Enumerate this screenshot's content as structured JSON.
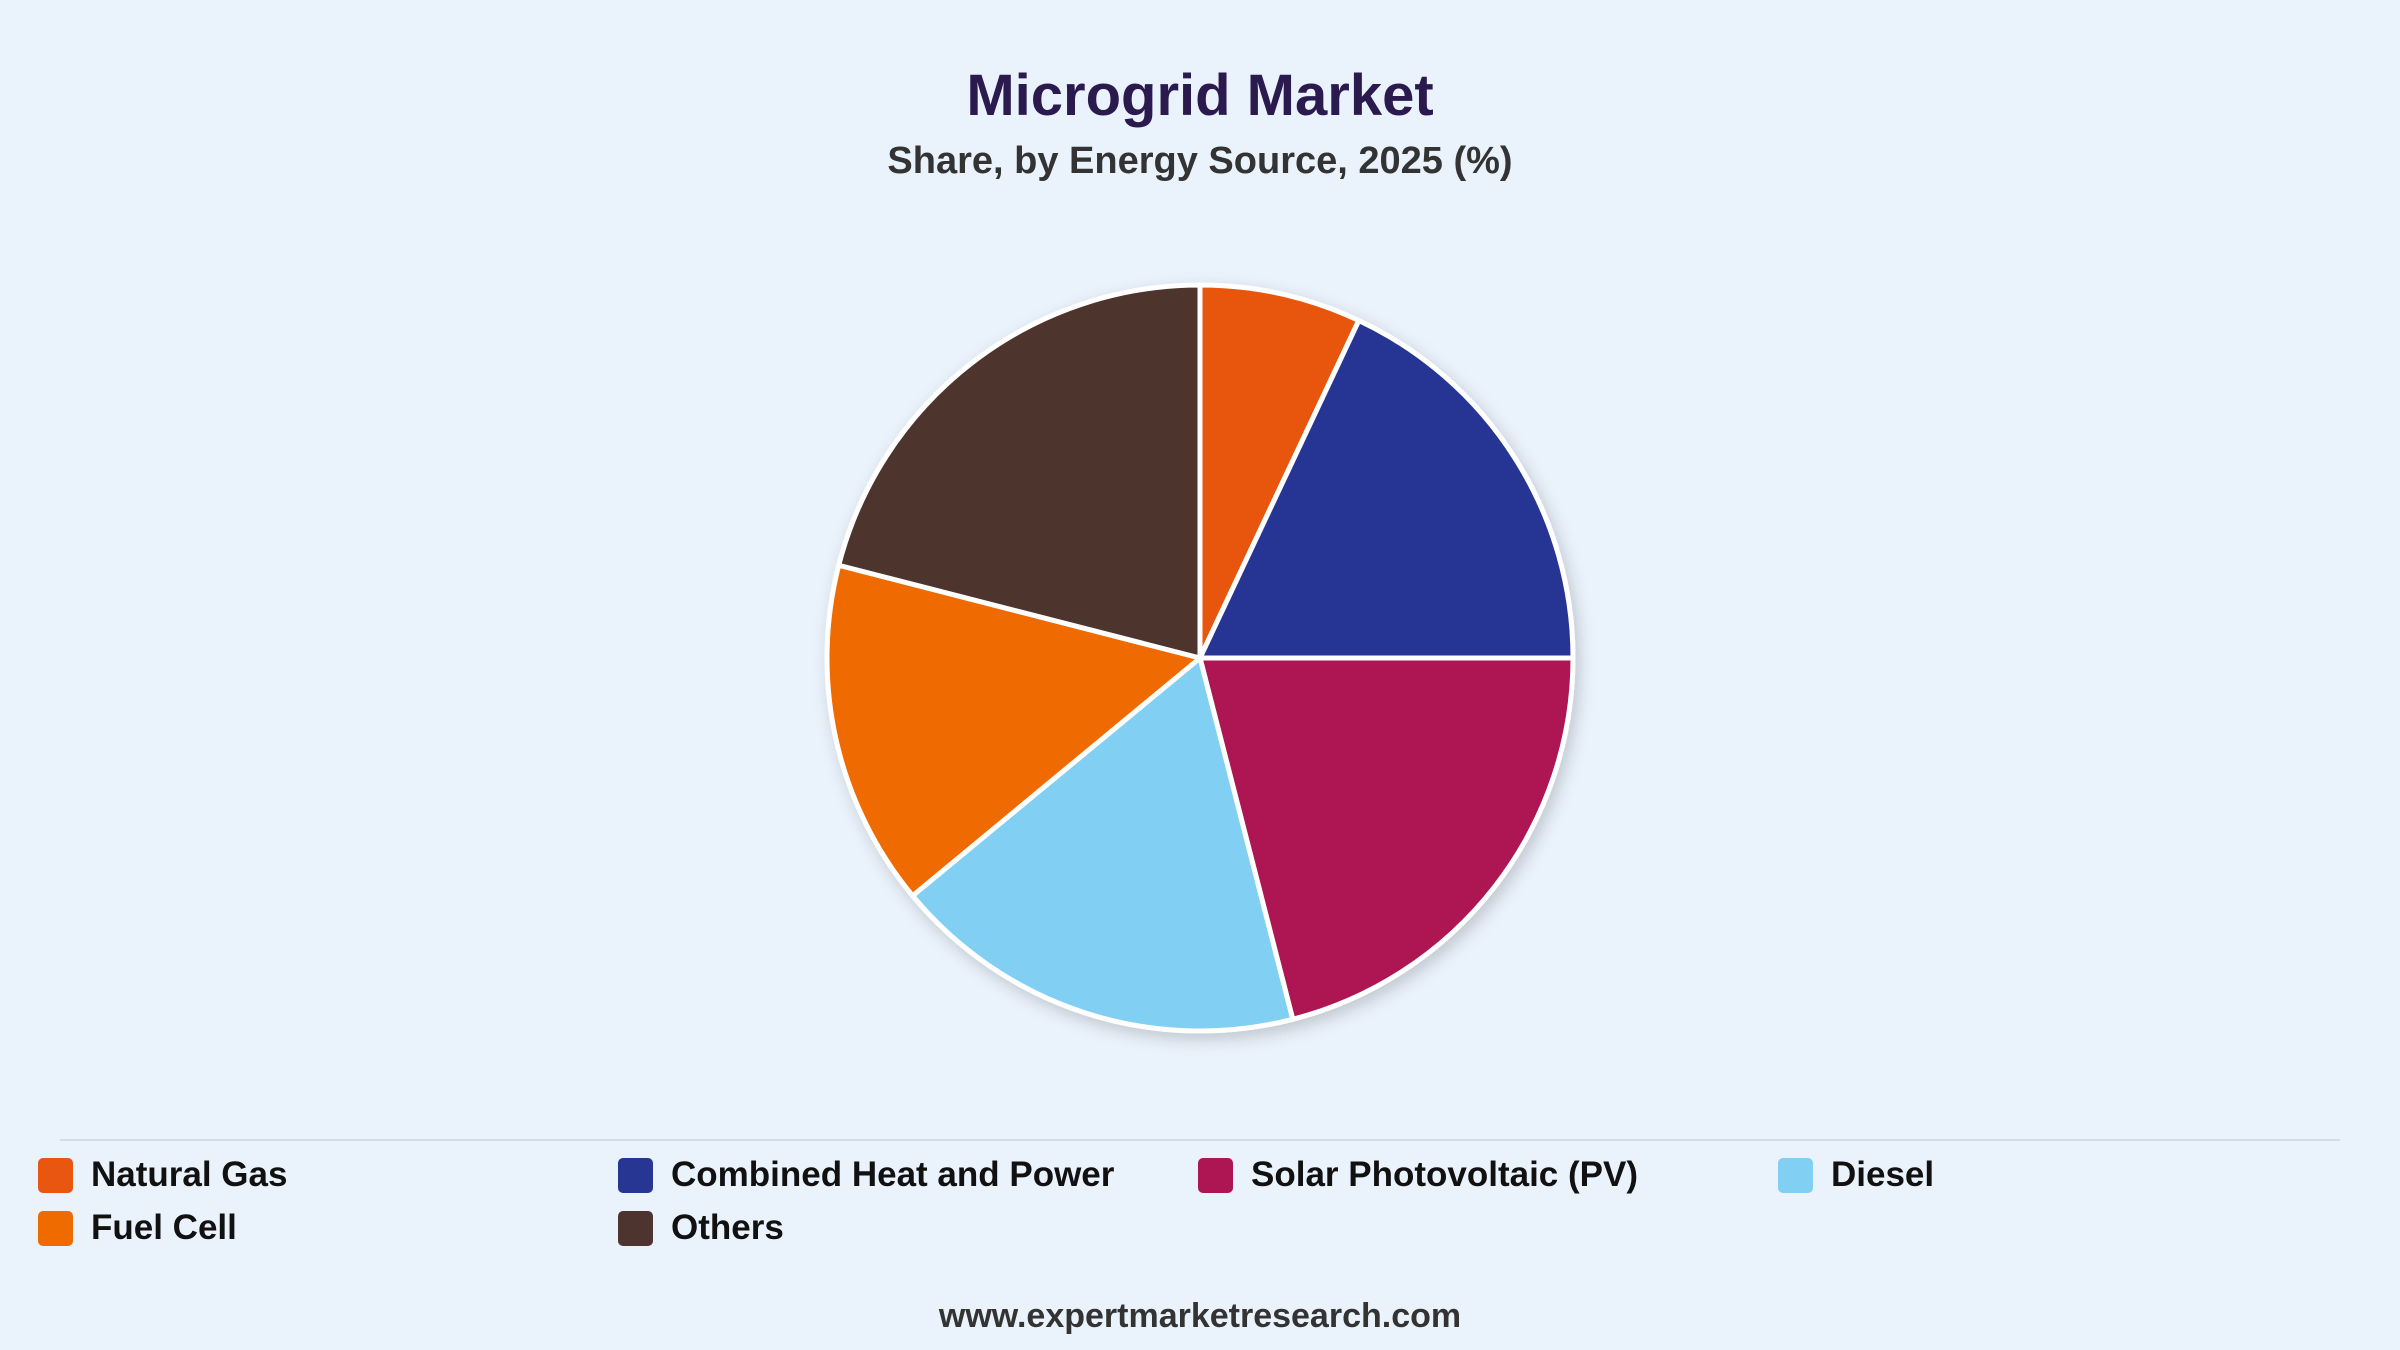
{
  "chart_data": {
    "type": "pie",
    "title": "Microgrid Market",
    "subtitle": "Share, by Energy Source, 2025 (%)",
    "slices": [
      {
        "label": "Natural Gas",
        "value": 7,
        "color": "#e8560f"
      },
      {
        "label": "Combined Heat and Power",
        "value": 18,
        "color": "#273593"
      },
      {
        "label": "Solar Photovoltaic (PV)",
        "value": 21,
        "color": "#ad1653"
      },
      {
        "label": "Diesel",
        "value": 18,
        "color": "#81cff2"
      },
      {
        "label": "Fuel Cell",
        "value": 15,
        "color": "#ef6b00"
      },
      {
        "label": "Others",
        "value": 21,
        "color": "#4e342e"
      }
    ],
    "legend_position": "bottom"
  },
  "footer": {
    "source": "www.expertmarketresearch.com"
  }
}
